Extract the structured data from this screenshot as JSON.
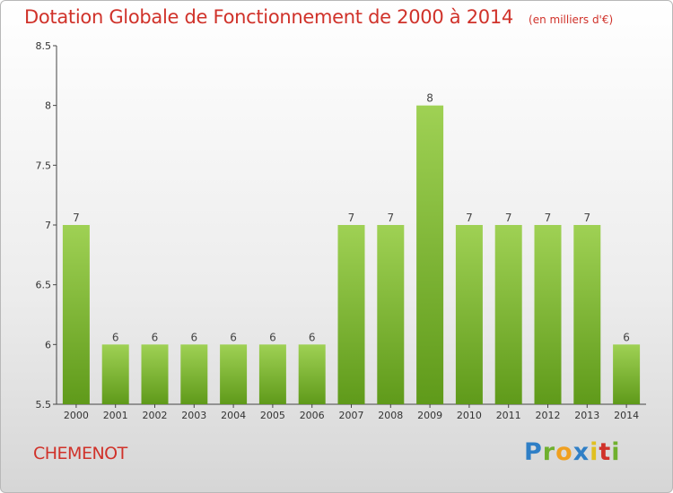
{
  "chart_data": {
    "type": "bar",
    "title": "Dotation Globale de Fonctionnement de 2000 à 2014",
    "unit": "(en milliers d'€)",
    "categories": [
      "2000",
      "2001",
      "2002",
      "2003",
      "2004",
      "2005",
      "2006",
      "2007",
      "2008",
      "2009",
      "2010",
      "2011",
      "2012",
      "2013",
      "2014"
    ],
    "values": [
      7,
      6,
      6,
      6,
      6,
      6,
      6,
      7,
      7,
      8,
      7,
      7,
      7,
      7,
      6
    ],
    "data_labels": [
      "7",
      "6",
      "6",
      "6",
      "6",
      "6",
      "6",
      "7",
      "7",
      "8",
      "7",
      "7",
      "7",
      "7",
      "6"
    ],
    "ylim": [
      5.5,
      8.5
    ],
    "yticks": [
      5.5,
      6,
      6.5,
      7,
      7.5,
      8,
      8.5
    ],
    "ytick_labels": [
      "5.5",
      "6",
      "6.5",
      "7",
      "7.5",
      "8",
      "8.5"
    ],
    "grid": false,
    "bar_color_top": "#9fd154",
    "bar_color_bottom": "#5f9a1a",
    "text_color": "#d0322a"
  },
  "commune": "CHEMENOT",
  "logo": {
    "letters": [
      "P",
      "r",
      "o",
      "x",
      "i",
      "t",
      "i"
    ],
    "colors": [
      "#2f7fc6",
      "#6fb02e",
      "#f0a020",
      "#2f7fc6",
      "#e0c020",
      "#d0322a",
      "#6fb02e"
    ]
  }
}
